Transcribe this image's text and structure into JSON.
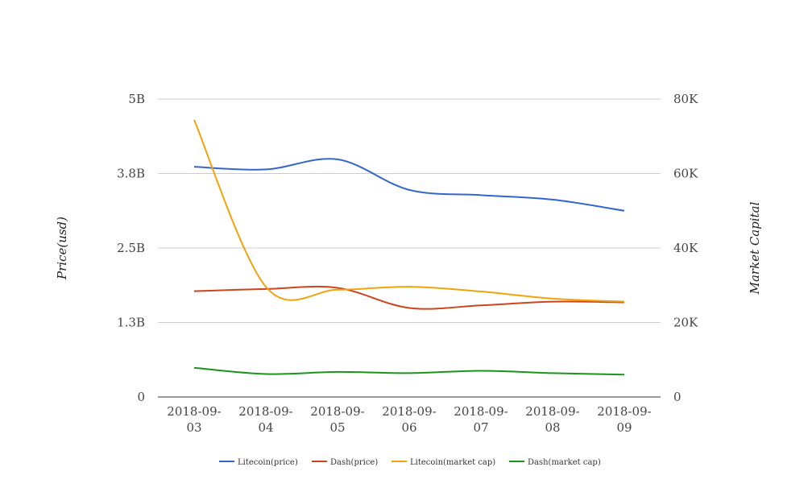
{
  "chart_data": {
    "type": "line",
    "title": "",
    "x": [
      "2018-09-03",
      "2018-09-04",
      "2018-09-05",
      "2018-09-06",
      "2018-09-07",
      "2018-09-08",
      "2018-09-09"
    ],
    "x_tick_labels": [
      [
        "2018-09-",
        "03"
      ],
      [
        "2018-09-",
        "04"
      ],
      [
        "2018-09-",
        "05"
      ],
      [
        "2018-09-",
        "06"
      ],
      [
        "2018-09-",
        "07"
      ],
      [
        "2018-09-",
        "08"
      ],
      [
        "2018-09-",
        "09"
      ]
    ],
    "ylabel": "Price(usd)",
    "y2label": "Market Capital",
    "ylim": [
      0,
      5000000000
    ],
    "y2lim": [
      0,
      80000
    ],
    "yticks": [
      0,
      1250000000,
      2500000000,
      3750000000,
      5000000000
    ],
    "ytick_labels": [
      "0",
      "1.3B",
      "2.5B",
      "3.8B",
      "5B"
    ],
    "y2ticks": [
      0,
      20000,
      40000,
      60000,
      80000
    ],
    "y2tick_labels": [
      "0",
      "20K",
      "40K",
      "60K",
      "80K"
    ],
    "grid": true,
    "legend_position": "bottom",
    "series": [
      {
        "name": "Litecoin(price)",
        "axis": "right",
        "color": "#3366cc",
        "values": [
          61800,
          61100,
          63800,
          55600,
          54200,
          53000,
          50000
        ]
      },
      {
        "name": "Dash(price)",
        "axis": "right",
        "color": "#cc4419",
        "values": [
          28400,
          29000,
          29300,
          23900,
          24600,
          25600,
          25400
        ]
      },
      {
        "name": "Litecoin(market cap)",
        "axis": "left",
        "color": "#f0a30a",
        "values": [
          4650000000,
          1850000000,
          1800000000,
          1850000000,
          1770000000,
          1650000000,
          1600000000
        ]
      },
      {
        "name": "Dash(market cap)",
        "axis": "left",
        "color": "#1a9419",
        "values": [
          490000000,
          385000000,
          420000000,
          400000000,
          440000000,
          400000000,
          375000000
        ]
      }
    ]
  }
}
